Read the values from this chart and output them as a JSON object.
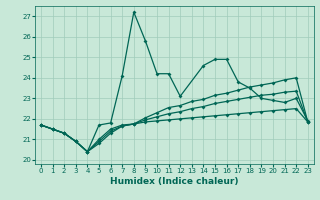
{
  "title": "",
  "xlabel": "Humidex (Indice chaleur)",
  "ylabel": "",
  "x_ticks": [
    0,
    1,
    2,
    3,
    4,
    5,
    6,
    7,
    8,
    9,
    10,
    11,
    12,
    13,
    14,
    15,
    16,
    17,
    18,
    19,
    20,
    21,
    22,
    23
  ],
  "ylim": [
    19.8,
    27.5
  ],
  "xlim": [
    -0.5,
    23.5
  ],
  "yticks": [
    20,
    21,
    22,
    23,
    24,
    25,
    26,
    27
  ],
  "background_color": "#c8e8d8",
  "grid_color": "#a0ccbb",
  "line_color": "#006655",
  "line1_x": [
    0,
    1,
    2,
    3,
    4,
    5,
    6,
    7,
    8,
    9,
    10,
    11,
    12,
    14,
    15,
    16,
    17,
    18,
    19,
    20,
    21,
    22,
    23
  ],
  "line1_y": [
    21.7,
    21.5,
    21.3,
    20.9,
    20.4,
    21.7,
    21.8,
    24.1,
    27.2,
    25.8,
    24.2,
    24.2,
    23.1,
    24.6,
    24.9,
    24.9,
    23.8,
    23.5,
    23.0,
    22.9,
    22.8,
    23.0,
    21.9
  ],
  "line2_x": [
    0,
    1,
    2,
    3,
    4,
    5,
    6,
    7,
    8,
    9,
    10,
    11,
    12,
    13,
    14,
    15,
    16,
    17,
    18,
    19,
    20,
    21,
    22,
    23
  ],
  "line2_y": [
    21.7,
    21.5,
    21.3,
    20.9,
    20.4,
    21.0,
    21.5,
    21.7,
    21.75,
    21.85,
    21.9,
    21.95,
    22.0,
    22.05,
    22.1,
    22.15,
    22.2,
    22.25,
    22.3,
    22.35,
    22.4,
    22.45,
    22.5,
    21.85
  ],
  "line3_x": [
    0,
    1,
    2,
    3,
    4,
    5,
    6,
    7,
    8,
    9,
    10,
    11,
    12,
    13,
    14,
    15,
    16,
    17,
    18,
    19,
    20,
    21,
    22,
    23
  ],
  "line3_y": [
    21.7,
    21.5,
    21.3,
    20.9,
    20.4,
    20.9,
    21.4,
    21.65,
    21.75,
    21.95,
    22.1,
    22.25,
    22.35,
    22.5,
    22.6,
    22.75,
    22.85,
    22.95,
    23.05,
    23.15,
    23.2,
    23.3,
    23.35,
    21.85
  ],
  "line4_x": [
    0,
    1,
    2,
    3,
    4,
    5,
    6,
    7,
    8,
    9,
    10,
    11,
    12,
    13,
    14,
    15,
    16,
    17,
    18,
    19,
    20,
    21,
    22,
    23
  ],
  "line4_y": [
    21.7,
    21.5,
    21.3,
    20.9,
    20.4,
    20.8,
    21.3,
    21.65,
    21.75,
    22.05,
    22.3,
    22.55,
    22.65,
    22.85,
    22.95,
    23.15,
    23.25,
    23.4,
    23.55,
    23.65,
    23.75,
    23.9,
    24.0,
    21.85
  ],
  "marker_size": 2.0,
  "line_width": 0.9,
  "tick_fontsize": 5.0,
  "xlabel_fontsize": 6.5
}
